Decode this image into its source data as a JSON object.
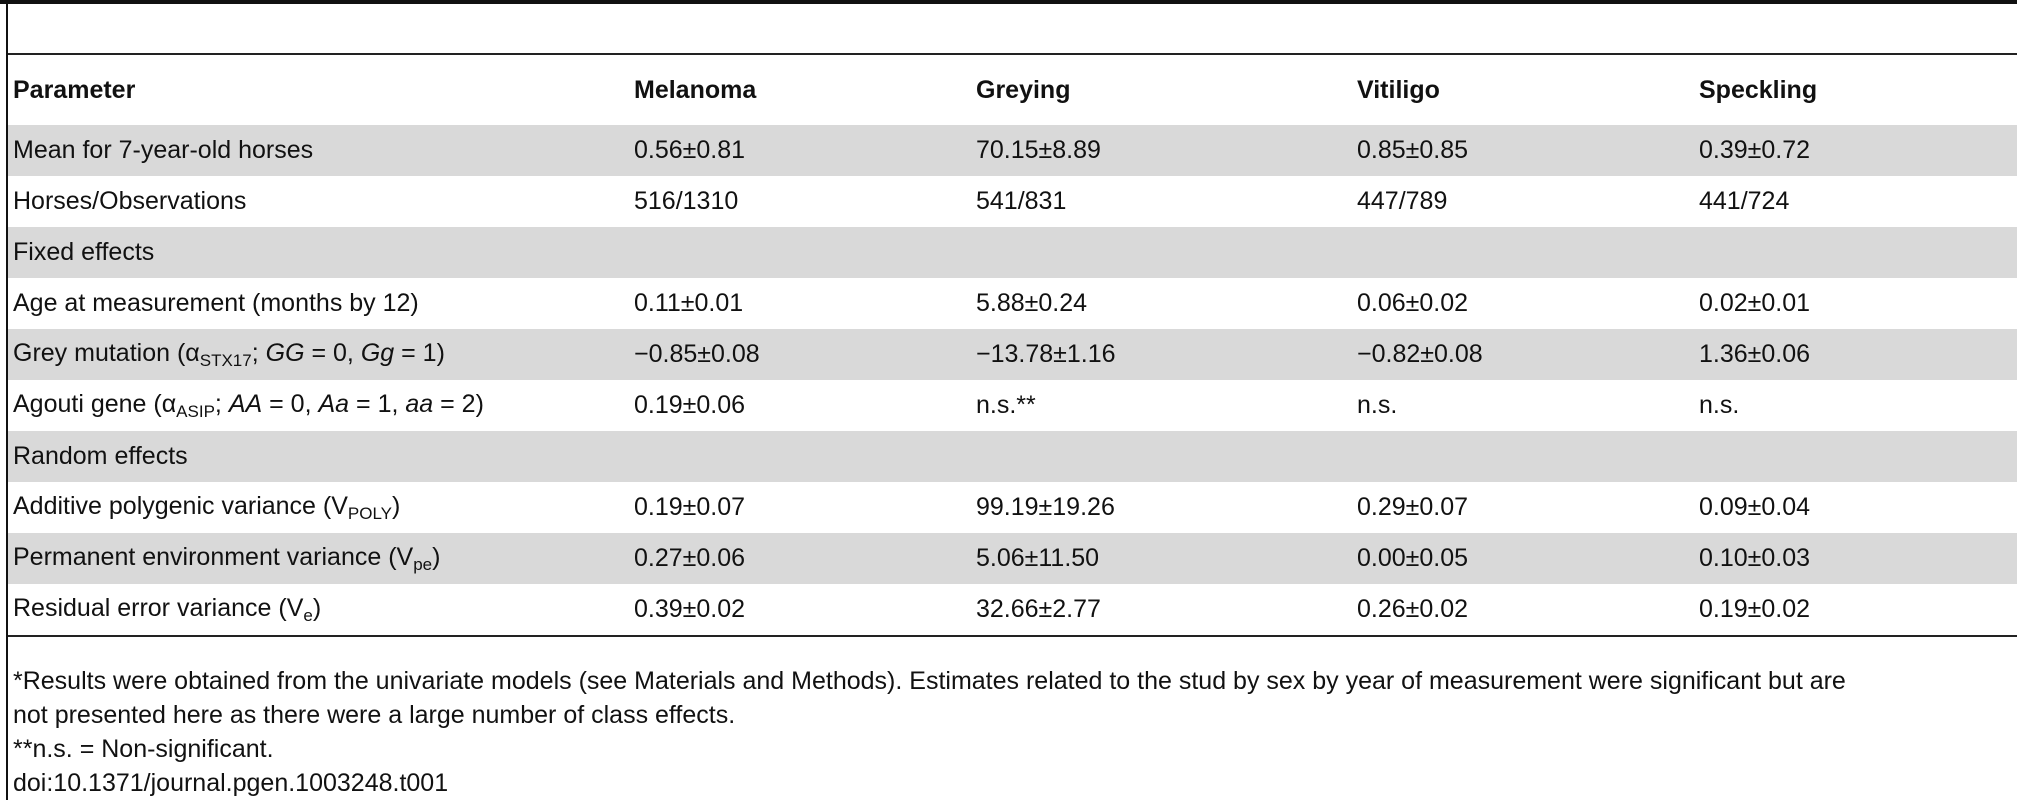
{
  "table": {
    "headers": [
      "Parameter",
      "Melanoma",
      "Greying",
      "Vitiligo",
      "Speckling"
    ],
    "rows": [
      {
        "param": "Mean for 7-year-old horses",
        "values": [
          "0.56±0.81",
          "70.15±8.89",
          "0.85±0.85",
          "0.39±0.72"
        ]
      },
      {
        "param": "Horses/Observations",
        "values": [
          "516/1310",
          "541/831",
          "447/789",
          "441/724"
        ]
      },
      {
        "section": "Fixed effects"
      },
      {
        "param": "Age at measurement (months by 12)",
        "values": [
          "0.11±0.01",
          "5.88±0.24",
          "0.06±0.02",
          "0.02±0.01"
        ]
      },
      {
        "param_parts": {
          "pre": "Grey mutation (α",
          "sub": "STX17",
          "mid1": "; ",
          "it1": "GG",
          "mid2": " = 0, ",
          "it2": "Gg",
          "post": " = 1)"
        },
        "values": [
          "−0.85±0.08",
          "−13.78±1.16",
          "−0.82±0.08",
          "1.36±0.06"
        ]
      },
      {
        "param_parts": {
          "pre": "Agouti gene (α",
          "sub": "ASIP",
          "mid1": "; ",
          "it1": "AA",
          "mid2": " = 0, ",
          "it2": "Aa",
          "mid3": " = 1, ",
          "it3": "aa",
          "post": " = 2)"
        },
        "values": [
          "0.19±0.06",
          "n.s.**",
          "n.s.",
          "n.s."
        ]
      },
      {
        "section": "Random effects"
      },
      {
        "param_parts": {
          "pre": "Additive polygenic variance (V",
          "sub": "POLY",
          "post": ")"
        },
        "values": [
          "0.19±0.07",
          "99.19±19.26",
          "0.29±0.07",
          "0.09±0.04"
        ]
      },
      {
        "param_parts": {
          "pre": "Permanent environment variance (V",
          "sub": "pe",
          "post": ")"
        },
        "values": [
          "0.27±0.06",
          "5.06±11.50",
          "0.00±0.05",
          "0.10±0.03"
        ]
      },
      {
        "param_parts": {
          "pre": "Residual error variance (V",
          "sub": "e",
          "post": ")"
        },
        "values": [
          "0.39±0.02",
          "32.66±2.77",
          "0.26±0.02",
          "0.19±0.02"
        ]
      }
    ]
  },
  "footnotes": {
    "note1_line1": "*Results were obtained from the univariate models (see Materials and Methods). Estimates related to the stud by sex by year of measurement were significant but are",
    "note1_line2": "not presented here as there were a large number of class effects.",
    "note2": "**n.s. = Non-significant.",
    "doi": "doi:10.1371/journal.pgen.1003248.t001"
  },
  "colors": {
    "shade": "#d9d9d9",
    "rule": "#222222"
  }
}
